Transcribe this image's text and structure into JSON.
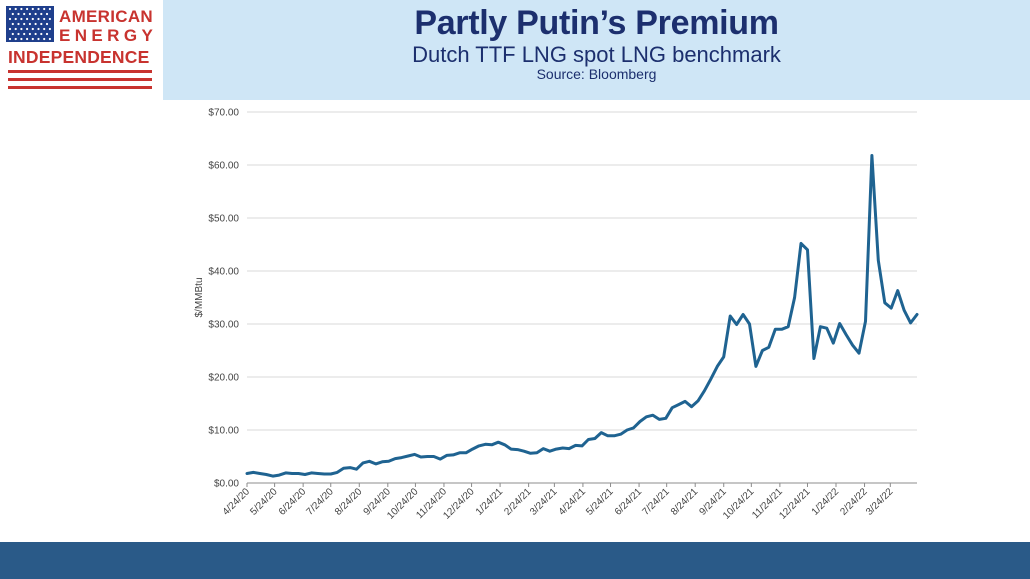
{
  "logo": {
    "line1": "AMERICAN",
    "line2": "ENERGY",
    "line3": "INDEPENDENCE",
    "colors": {
      "blue": "#1f3f8c",
      "red": "#c8332f"
    }
  },
  "header": {
    "title": "Partly Putin’s Premium",
    "subtitle": "Dutch TTF LNG spot LNG benchmark",
    "source": "Source: Bloomberg",
    "background": "#cfe6f6",
    "title_color": "#1c2f6e"
  },
  "footer": {
    "color": "#2a5a88"
  },
  "chart_data": {
    "type": "line",
    "title": "",
    "xlabel": "",
    "ylabel": "$/MMBtu",
    "ylim": [
      0,
      70
    ],
    "yticks": [
      0,
      10,
      20,
      30,
      40,
      50,
      60,
      70
    ],
    "ytick_labels": [
      "$0.00",
      "$10.00",
      "$20.00",
      "$30.00",
      "$40.00",
      "$50.00",
      "$60.00",
      "$70.00"
    ],
    "xticks": [
      "4/24/20",
      "5/24/20",
      "6/24/20",
      "7/24/20",
      "8/24/20",
      "9/24/20",
      "10/24/20",
      "11/24/20",
      "12/24/20",
      "1/24/21",
      "2/24/21",
      "3/24/21",
      "4/24/21",
      "5/24/21",
      "6/24/21",
      "7/24/21",
      "8/24/21",
      "9/24/21",
      "10/24/21",
      "11/24/21",
      "12/24/21",
      "1/24/22",
      "2/24/22",
      "3/24/22"
    ],
    "xlim": [
      "2020-04-24",
      "2022-04-22"
    ],
    "grid": "horizontal",
    "line_color": "#1f6391",
    "series": [
      {
        "x": [
          "2020-04-24",
          "2020-05-01",
          "2020-05-08",
          "2020-05-15",
          "2020-05-22",
          "2020-05-29",
          "2020-06-05",
          "2020-06-12",
          "2020-06-19",
          "2020-06-26",
          "2020-07-03",
          "2020-07-10",
          "2020-07-17",
          "2020-07-24",
          "2020-07-31",
          "2020-08-07",
          "2020-08-14",
          "2020-08-21",
          "2020-08-28",
          "2020-09-04",
          "2020-09-11",
          "2020-09-18",
          "2020-09-25",
          "2020-10-02",
          "2020-10-09",
          "2020-10-16",
          "2020-10-23",
          "2020-10-30",
          "2020-11-06",
          "2020-11-13",
          "2020-11-20",
          "2020-11-27",
          "2020-12-04",
          "2020-12-11",
          "2020-12-18",
          "2020-12-25",
          "2021-01-01",
          "2021-01-08",
          "2021-01-15",
          "2021-01-22",
          "2021-01-29",
          "2021-02-05",
          "2021-02-12",
          "2021-02-19",
          "2021-02-26",
          "2021-03-05",
          "2021-03-12",
          "2021-03-19",
          "2021-03-26",
          "2021-04-02",
          "2021-04-09",
          "2021-04-16",
          "2021-04-23",
          "2021-04-30",
          "2021-05-07",
          "2021-05-14",
          "2021-05-21",
          "2021-05-28",
          "2021-06-04",
          "2021-06-11",
          "2021-06-18",
          "2021-06-25",
          "2021-07-02",
          "2021-07-09",
          "2021-07-16",
          "2021-07-23",
          "2021-07-30",
          "2021-08-06",
          "2021-08-13",
          "2021-08-20",
          "2021-08-27",
          "2021-09-03",
          "2021-09-10",
          "2021-09-17",
          "2021-09-24",
          "2021-10-01",
          "2021-10-08",
          "2021-10-15",
          "2021-10-22",
          "2021-10-29",
          "2021-11-05",
          "2021-11-12",
          "2021-11-19",
          "2021-11-26",
          "2021-12-03",
          "2021-12-10",
          "2021-12-17",
          "2021-12-24",
          "2021-12-31",
          "2022-01-07",
          "2022-01-14",
          "2022-01-21",
          "2022-01-28",
          "2022-02-04",
          "2022-02-11",
          "2022-02-18",
          "2022-02-25",
          "2022-03-04",
          "2022-03-11",
          "2022-03-18",
          "2022-03-25",
          "2022-04-01",
          "2022-04-08",
          "2022-04-15",
          "2022-04-22"
        ],
        "values": [
          1.8,
          2.0,
          1.8,
          1.6,
          1.3,
          1.5,
          1.9,
          1.8,
          1.8,
          1.6,
          1.9,
          1.8,
          1.7,
          1.7,
          2.0,
          2.8,
          2.9,
          2.6,
          3.8,
          4.1,
          3.6,
          4.0,
          4.1,
          4.6,
          4.8,
          5.1,
          5.4,
          4.9,
          5.0,
          5.0,
          4.5,
          5.2,
          5.3,
          5.7,
          5.7,
          6.4,
          7.0,
          7.3,
          7.2,
          7.7,
          7.2,
          6.4,
          6.3,
          6.0,
          5.6,
          5.7,
          6.5,
          6.0,
          6.4,
          6.6,
          6.5,
          7.1,
          7.0,
          8.2,
          8.4,
          9.5,
          8.9,
          8.9,
          9.2,
          10.0,
          10.4,
          11.6,
          12.5,
          12.8,
          12.0,
          12.2,
          14.2,
          14.8,
          15.4,
          14.4,
          15.5,
          17.4,
          19.6,
          22.0,
          23.8,
          31.5,
          29.9,
          31.8,
          30.0,
          22.0,
          25.0,
          25.6,
          29.0,
          29.0,
          29.5,
          35.0,
          45.2,
          44.0,
          23.5,
          29.5,
          29.2,
          26.4,
          30.1,
          28.0,
          26.0,
          24.5,
          30.5,
          61.8,
          42.0,
          34.0,
          33.0,
          36.3,
          32.6,
          30.2,
          31.8
        ]
      }
    ]
  }
}
